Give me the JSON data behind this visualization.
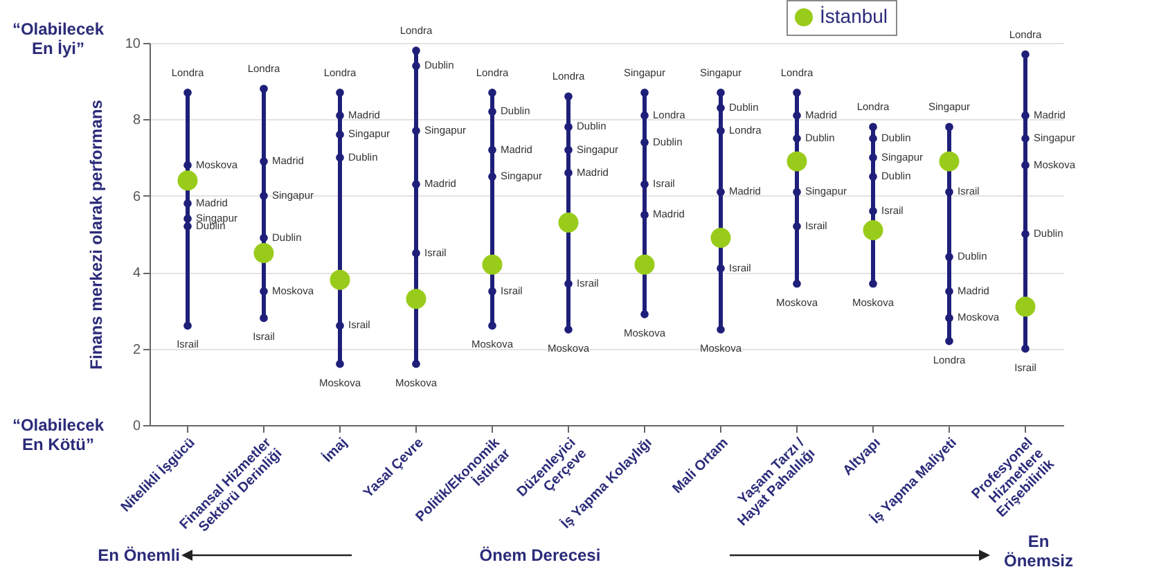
{
  "chart_data": {
    "type": "scatter",
    "ylabel": "Finans merkezi olarak performans",
    "annotations": [
      "“Olabilecek En İyi”",
      "“Olabilecek En Kötü”",
      "En Önemli",
      "Önem Derecesi",
      "En Önemsiz"
    ],
    "categories": [
      "Nitelikli İşgücü",
      "Finansal Hizmetler Sektörü Derinliği",
      "İmaj",
      "Yasal Çevre",
      "Politik/Ekonomik İstikrar",
      "Düzenleyici Çerçeve",
      "İş Yapma Kolaylığı",
      "Mali Ortam",
      "Yaşam Tarzı / Hayat Pahalılığı",
      "Altyapı",
      "İş Yapma Maliyeti",
      "Profesyonel Hizmetlere Erişebilirlik"
    ],
    "ylim": [
      0,
      10
    ],
    "yticks": [
      0,
      2,
      4,
      6,
      8,
      10
    ],
    "grid": "y",
    "legend": "top right",
    "series": [
      {
        "type": "bar",
        "color": "#1f1f7a",
        "base": [
          2.6,
          2.8,
          1.6,
          1.6,
          2.6,
          2.5,
          2.9,
          2.5,
          3.7,
          3.7,
          2.2,
          2.0
        ],
        "values": [
          6.1,
          6.0,
          7.1,
          8.2,
          6.1,
          6.1,
          5.8,
          6.2,
          5.0,
          4.1,
          5.6,
          7.7
        ]
      },
      {
        "marker": "circle",
        "color": "#1f1f7a",
        "values": [
          8.7,
          8.8,
          8.7,
          9.8,
          8.7,
          8.6,
          8.1,
          7.7,
          8.7,
          7.8,
          2.2,
          9.7
        ],
        "value_labels": [
          "Londra",
          "Londra",
          "Londra",
          "Londra",
          "Londra",
          "Londra",
          "Londra",
          "Londra",
          "Londra",
          "Londra",
          "Londra",
          "Londra"
        ]
      },
      {
        "marker": "circle",
        "color": "#1f1f7a",
        "values": [
          5.2,
          4.9,
          7.0,
          9.4,
          8.2,
          7.8,
          7.4,
          8.3,
          7.5,
          7.5,
          4.4,
          5.0
        ],
        "value_labels": [
          "Dublin",
          "Dublin",
          "Dublin",
          "Dublin",
          "Dublin",
          "Dublin",
          "Dublin",
          "Dublin",
          "Dublin",
          "Dublin",
          "Dublin",
          "Dublin"
        ]
      },
      {
        "marker": "circle",
        "color": "#1f1f7a",
        "values": [
          5.4,
          6.0,
          7.6,
          7.7,
          6.5,
          7.2,
          8.7,
          8.7,
          6.1,
          7.0,
          7.8,
          7.5
        ],
        "value_labels": [
          "Singapur",
          "Singapur",
          "Singapur",
          "Singapur",
          "Singapur",
          "Singapur",
          "Singapur",
          "Singapur",
          "Singapur",
          "Singapur",
          "Singapur",
          "Singapur"
        ]
      },
      {
        "marker": "circle",
        "color": "#1f1f7a",
        "values": [
          5.8,
          6.9,
          8.1,
          6.3,
          7.2,
          6.6,
          5.5,
          6.1,
          8.1,
          null,
          3.5,
          8.1
        ],
        "value_labels": [
          "Madrid",
          "Madrid",
          "Madrid",
          "Madrid",
          "Madrid",
          "Madrid",
          "Madrid",
          "Madrid",
          "Madrid",
          null,
          "Madrid",
          "Madrid"
        ]
      },
      {
        "marker": "circle",
        "color": "#1f1f7a",
        "values": [
          2.6,
          2.8,
          2.6,
          4.5,
          3.5,
          3.7,
          6.3,
          4.1,
          5.2,
          5.6,
          6.1,
          2.0
        ],
        "value_labels": [
          "Israil",
          "Israil",
          "Israil",
          "Israil",
          "Israil",
          "Israil",
          "Israil",
          "Israil",
          "Israil",
          "Israil",
          "Israil",
          "Israil"
        ]
      },
      {
        "marker": "circle",
        "color": "#1f1f7a",
        "values": [
          6.8,
          3.5,
          1.6,
          1.6,
          2.6,
          2.5,
          2.9,
          2.5,
          3.7,
          3.7,
          2.8,
          6.8
        ],
        "value_labels": [
          "Moskova",
          "Moskova",
          "Moskova",
          "Moskova",
          "Moskova",
          "Moskova",
          "Moskova",
          "Moskova",
          "Moskova",
          "Moskova",
          "Moskova",
          "Moskova"
        ]
      },
      {
        "marker": "circle",
        "color": "#1f1f7a",
        "values": [
          null,
          null,
          null,
          null,
          null,
          null,
          null,
          null,
          null,
          6.5,
          null,
          null
        ],
        "value_labels": [
          null,
          null,
          null,
          null,
          null,
          null,
          null,
          null,
          null,
          "Dublin",
          null,
          null
        ]
      },
      {
        "name": "İstanbul",
        "marker": "circle",
        "color": "#99cc1a",
        "values": [
          6.4,
          4.5,
          3.8,
          3.3,
          4.2,
          5.3,
          4.2,
          4.9,
          6.9,
          5.1,
          6.9,
          3.1
        ]
      }
    ]
  }
}
